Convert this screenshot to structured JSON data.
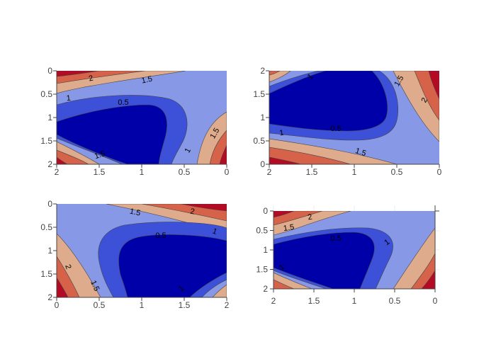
{
  "chart_data": [
    {
      "type": "contour",
      "panel": "top-left",
      "x_tick_labels": [
        "2",
        "1.5",
        "1",
        "0.5",
        "0"
      ],
      "y_tick_labels": [
        "0",
        "0.5",
        "1",
        "1.5",
        "2"
      ],
      "xlim": [
        2,
        0
      ],
      "ylim": [
        2,
        0
      ],
      "x_reversed": true,
      "y_reversed": true,
      "contour_levels": [
        0.5,
        1,
        1.5,
        2
      ],
      "contour_labels": [
        "2",
        "1.5",
        "1",
        "0.5",
        "1.5",
        "1",
        "1.5",
        "2"
      ]
    },
    {
      "type": "contour",
      "panel": "top-right",
      "x_tick_labels": [
        "2",
        "1.5",
        "1",
        "0.5",
        "0"
      ],
      "y_tick_labels": [
        "2",
        "1.5",
        "1",
        "0.5",
        "0"
      ],
      "xlim": [
        2,
        0
      ],
      "ylim": [
        0,
        2
      ],
      "x_reversed": true,
      "y_reversed": false,
      "contour_levels": [
        0.5,
        1,
        1.5,
        2
      ],
      "contour_labels": [
        "1",
        "1.5",
        "2",
        "1",
        "0.5",
        "1.5",
        "2"
      ]
    },
    {
      "type": "contour",
      "panel": "bottom-left",
      "x_tick_labels": [
        "0",
        "0.5",
        "1",
        "1.5",
        "2"
      ],
      "y_tick_labels": [
        "0",
        "0.5",
        "1",
        "1.5",
        "2"
      ],
      "xlim": [
        0,
        2
      ],
      "ylim": [
        2,
        0
      ],
      "x_reversed": false,
      "y_reversed": true,
      "contour_levels": [
        0.5,
        1,
        1.5,
        2
      ],
      "contour_labels": [
        "1.5",
        "2",
        "1",
        "0.5",
        "2",
        "1.5",
        "1"
      ]
    },
    {
      "type": "contour",
      "panel": "bottom-right",
      "x_tick_labels": [
        "2",
        "1.5",
        "1",
        "0.5",
        "0"
      ],
      "y_tick_labels": [
        "0",
        "0.5",
        "1",
        "1.5",
        "2"
      ],
      "xlim": [
        2,
        0
      ],
      "ylim": [
        2,
        0
      ],
      "x_reversed": true,
      "y_reversed": true,
      "contour_levels": [
        0.5,
        1,
        1.5,
        2
      ],
      "contour_labels": [
        "2",
        "1.5",
        "0.5",
        "1",
        "1"
      ]
    }
  ],
  "colors": {
    "level_0": "#0000a8",
    "level_1": "#3c50d8",
    "level_2": "#8799e6",
    "level_3": "#deac8c",
    "level_4": "#d6624a",
    "level_5": "#b50a23",
    "contour_line": "#444444",
    "axis": "#444444"
  }
}
